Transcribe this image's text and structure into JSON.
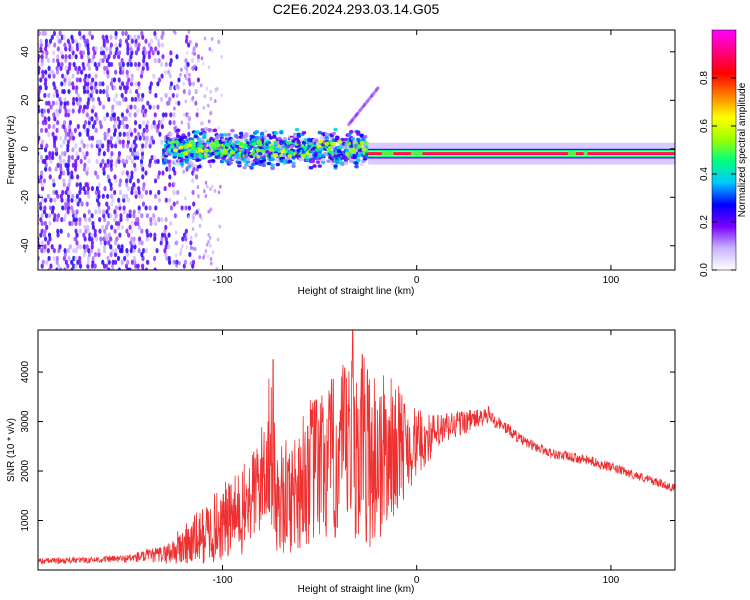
{
  "chart_data": [
    {
      "type": "heatmap",
      "title": "C2E6.2024.293.03.14.G05",
      "xlabel": "Height of straight line (km)",
      "ylabel": "Frequency (Hz)",
      "xlim": [
        -195,
        133
      ],
      "ylim": [
        -50,
        49
      ],
      "x_ticks": [
        -100,
        0,
        100
      ],
      "x_tick_labels": [
        "-100",
        "0",
        "100"
      ],
      "y_ticks": [
        -40,
        -20,
        0,
        20,
        40
      ],
      "y_tick_labels": [
        "-40",
        "-20",
        "0",
        "20",
        "40"
      ],
      "colorbar": {
        "label": "Normalized spectral amplitude",
        "range": [
          0,
          1
        ],
        "ticks": [
          0.0,
          0.2,
          0.4,
          0.6,
          0.8
        ],
        "tick_labels": [
          "0.0",
          "0.2",
          "0.4",
          "0.6",
          "0.8"
        ],
        "colors": [
          "#ffffff",
          "#c8b4ff",
          "#7a00ff",
          "#0000ff",
          "#00c8ff",
          "#00ff80",
          "#a0ff00",
          "#ffff00",
          "#ff8000",
          "#ff0000",
          "#ff0080",
          "#ff00ff"
        ]
      },
      "features": [
        {
          "name": "noise region",
          "x_range": [
            -195,
            -120
          ],
          "freq_range": [
            -50,
            49
          ],
          "amplitude": 0.15
        },
        {
          "name": "scattered signal",
          "x_range": [
            -130,
            -25
          ],
          "freq_center": 0,
          "freq_halfwidth": 6,
          "amplitude": 0.4
        },
        {
          "name": "drifting tone",
          "x_range": [
            -35,
            -20
          ],
          "freq_start": 10,
          "freq_end": 25,
          "amplitude": 0.1
        },
        {
          "name": "coherent signal",
          "x_range": [
            -25,
            133
          ],
          "freq_center": -2,
          "freq_halfwidth": 2,
          "amplitude": 0.95
        }
      ]
    },
    {
      "type": "line",
      "xlabel": "Height of straight line (km)",
      "ylabel": "SNR (10 * v/v)",
      "xlim": [
        -195,
        133
      ],
      "ylim": [
        0,
        4850
      ],
      "x_ticks": [
        -100,
        0,
        100
      ],
      "x_tick_labels": [
        "-100",
        "0",
        "100"
      ],
      "y_ticks": [
        1000,
        2000,
        3000,
        4000
      ],
      "y_tick_labels": [
        "1000",
        "2000",
        "3000",
        "4000"
      ],
      "color": "#ee3030",
      "series": [
        {
          "name": "SNR envelope",
          "x": [
            -195,
            -170,
            -150,
            -130,
            -120,
            -110,
            -100,
            -90,
            -80,
            -76,
            -72,
            -65,
            -55,
            -45,
            -35,
            -30,
            -20,
            -10,
            0,
            10,
            20,
            30,
            37,
            45,
            55,
            70,
            90,
            110,
            133
          ],
          "y": [
            180,
            200,
            230,
            320,
            480,
            700,
            950,
            1150,
            1800,
            2600,
            1400,
            1500,
            2000,
            2150,
            2400,
            2500,
            2250,
            2500,
            2550,
            2750,
            2950,
            3050,
            3100,
            2900,
            2600,
            2350,
            2200,
            1950,
            1650
          ],
          "noise_amp": [
            60,
            60,
            80,
            180,
            450,
            600,
            800,
            900,
            1100,
            1600,
            1100,
            1200,
            1500,
            1700,
            1900,
            2000,
            1900,
            1300,
            700,
            400,
            300,
            200,
            150,
            130,
            110,
            100,
            100,
            90,
            80
          ]
        }
      ],
      "peaks": [
        {
          "x": -74,
          "y": 4250
        },
        {
          "x": -33,
          "y": 4850
        },
        {
          "x": -28,
          "y": 4350
        },
        {
          "x": 37,
          "y": 3300
        }
      ]
    }
  ]
}
